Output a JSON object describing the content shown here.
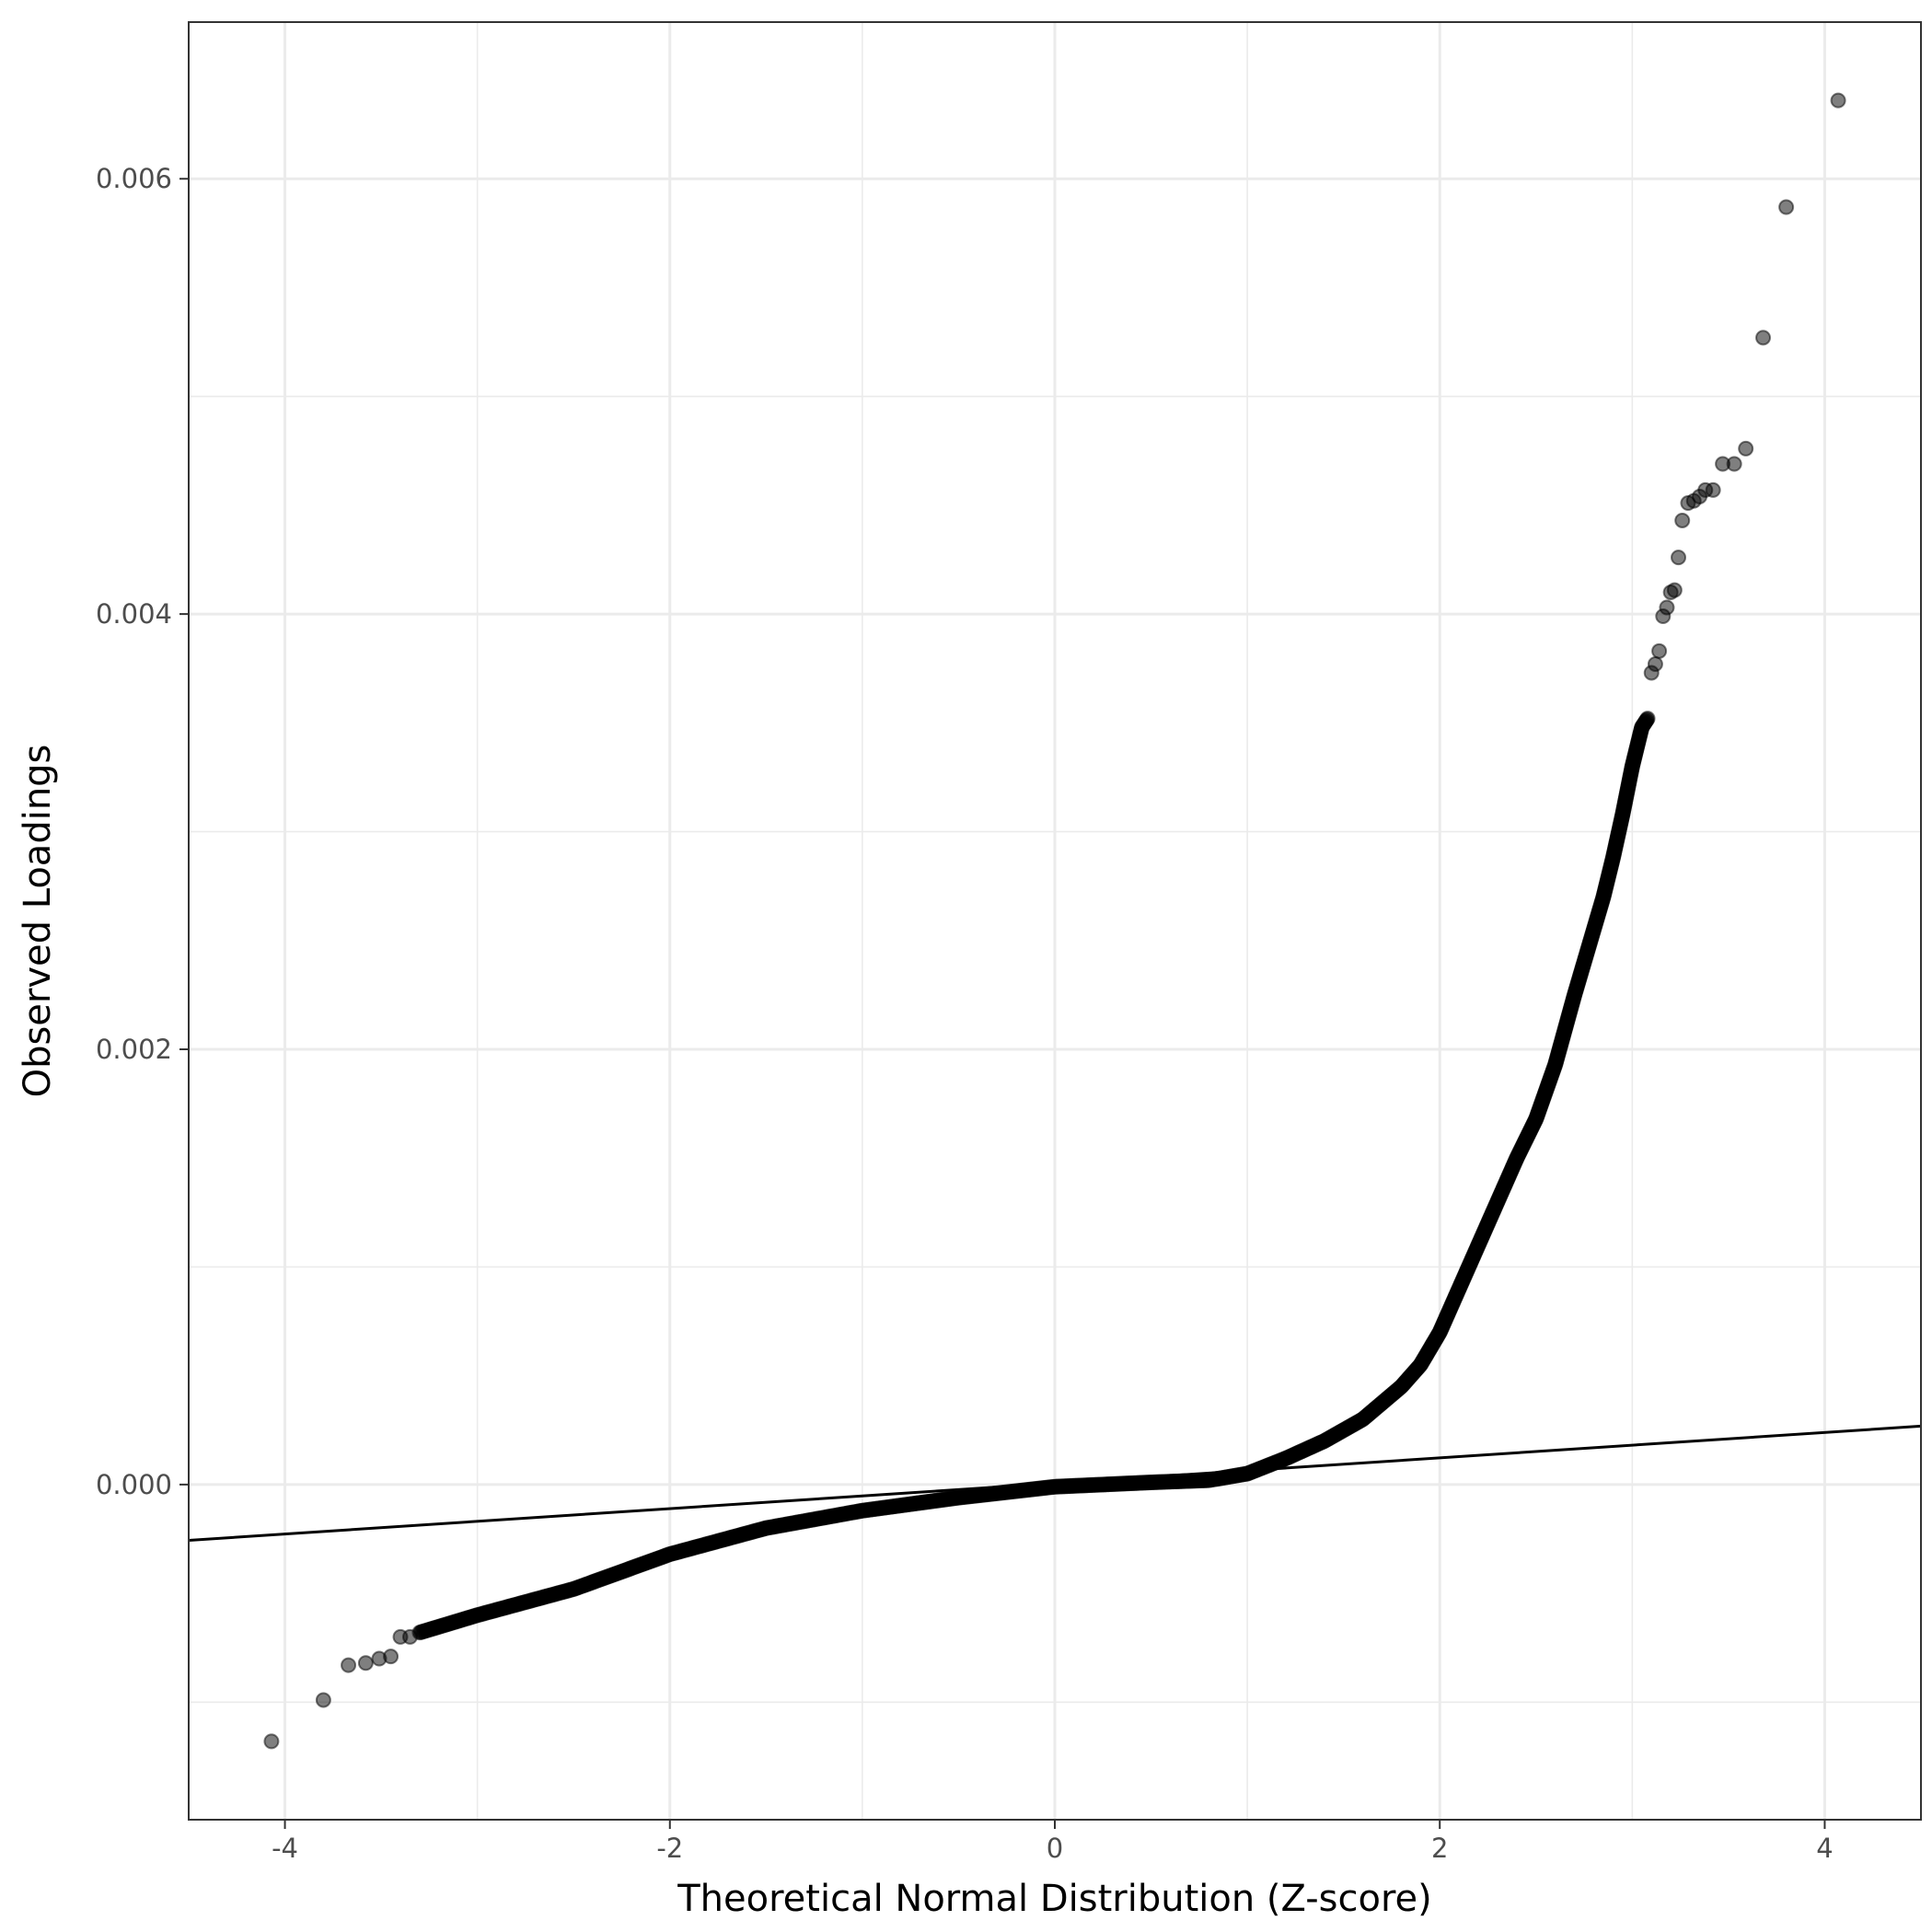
{
  "chart_data": {
    "type": "scatter",
    "title": "",
    "xlabel": "Theoretical Normal Distribution (Z-score)",
    "ylabel": "Observed Loadings",
    "xlim": [
      -4.5,
      4.5
    ],
    "ylim": [
      -0.00154,
      0.00672
    ],
    "x_ticks": [
      -4,
      -2,
      0,
      2,
      4
    ],
    "x_tick_labels": [
      "-4",
      "-2",
      "0",
      "2",
      "4"
    ],
    "y_ticks": [
      0.0,
      0.002,
      0.004,
      0.006
    ],
    "y_tick_labels": [
      "0.000",
      "0.002",
      "0.004",
      "0.006"
    ],
    "grid": true,
    "legend": "none",
    "point_color": "#000000",
    "point_alpha": 0.5,
    "reference_line": {
      "intercept": 6e-06,
      "slope": 5.83e-05,
      "color": "#000000"
    },
    "outlier_points": [
      {
        "x": -4.07,
        "y": -0.00118
      },
      {
        "x": -3.8,
        "y": -0.00099
      },
      {
        "x": -3.67,
        "y": -0.00083
      },
      {
        "x": -3.58,
        "y": -0.00082
      },
      {
        "x": -3.51,
        "y": -0.0008
      },
      {
        "x": -3.45,
        "y": -0.00079
      },
      {
        "x": -3.4,
        "y": -0.0007
      },
      {
        "x": -3.35,
        "y": -0.0007
      },
      {
        "x": 3.1,
        "y": 0.00373
      },
      {
        "x": 3.12,
        "y": 0.00377
      },
      {
        "x": 3.14,
        "y": 0.00383
      },
      {
        "x": 3.16,
        "y": 0.00399
      },
      {
        "x": 3.18,
        "y": 0.00403
      },
      {
        "x": 3.2,
        "y": 0.0041
      },
      {
        "x": 3.22,
        "y": 0.00411
      },
      {
        "x": 3.24,
        "y": 0.00426
      },
      {
        "x": 3.26,
        "y": 0.00443
      },
      {
        "x": 3.29,
        "y": 0.00451
      },
      {
        "x": 3.32,
        "y": 0.00452
      },
      {
        "x": 3.35,
        "y": 0.00454
      },
      {
        "x": 3.38,
        "y": 0.00457
      },
      {
        "x": 3.42,
        "y": 0.00457
      },
      {
        "x": 3.47,
        "y": 0.00469
      },
      {
        "x": 3.53,
        "y": 0.00469
      },
      {
        "x": 3.59,
        "y": 0.00476
      },
      {
        "x": 3.68,
        "y": 0.00527
      },
      {
        "x": 3.8,
        "y": 0.00587
      },
      {
        "x": 4.07,
        "y": 0.00636
      }
    ],
    "dense_curve": [
      {
        "x": -3.3,
        "y": -0.00068
      },
      {
        "x": -3.0,
        "y": -0.0006
      },
      {
        "x": -2.5,
        "y": -0.00048
      },
      {
        "x": -2.0,
        "y": -0.00032
      },
      {
        "x": -1.5,
        "y": -0.0002
      },
      {
        "x": -1.0,
        "y": -0.00012
      },
      {
        "x": -0.5,
        "y": -6e-05
      },
      {
        "x": 0.0,
        "y": -1e-05
      },
      {
        "x": 0.5,
        "y": 1e-05
      },
      {
        "x": 0.8,
        "y": 2e-05
      },
      {
        "x": 1.0,
        "y": 5e-05
      },
      {
        "x": 1.2,
        "y": 0.00012
      },
      {
        "x": 1.4,
        "y": 0.0002
      },
      {
        "x": 1.6,
        "y": 0.0003
      },
      {
        "x": 1.8,
        "y": 0.00045
      },
      {
        "x": 1.9,
        "y": 0.00055
      },
      {
        "x": 2.0,
        "y": 0.0007
      },
      {
        "x": 2.1,
        "y": 0.0009
      },
      {
        "x": 2.2,
        "y": 0.0011
      },
      {
        "x": 2.3,
        "y": 0.0013
      },
      {
        "x": 2.4,
        "y": 0.0015
      },
      {
        "x": 2.5,
        "y": 0.00168
      },
      {
        "x": 2.6,
        "y": 0.00193
      },
      {
        "x": 2.7,
        "y": 0.00225
      },
      {
        "x": 2.8,
        "y": 0.00255
      },
      {
        "x": 2.85,
        "y": 0.0027
      },
      {
        "x": 2.9,
        "y": 0.00288
      },
      {
        "x": 2.95,
        "y": 0.00308
      },
      {
        "x": 3.0,
        "y": 0.0033
      },
      {
        "x": 3.05,
        "y": 0.00348
      },
      {
        "x": 3.08,
        "y": 0.00352
      }
    ]
  }
}
